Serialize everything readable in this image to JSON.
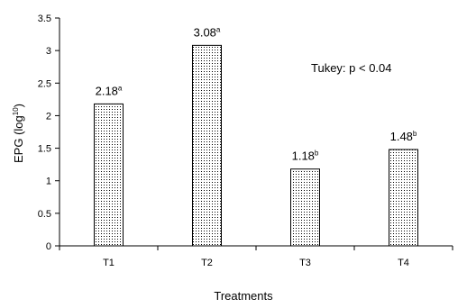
{
  "chart_data": {
    "type": "bar",
    "title": "",
    "xlabel": "Treatments",
    "ylabel_main": "EPG (log",
    "ylabel_sup": "10",
    "ylabel_end": ")",
    "categories": [
      "T1",
      "T2",
      "T3",
      "T4"
    ],
    "values": [
      2.18,
      3.08,
      1.18,
      1.48
    ],
    "value_labels": [
      "2.18",
      "3.08",
      "1.18",
      "1.48"
    ],
    "significance_letters": [
      "a",
      "a",
      "b",
      "b"
    ],
    "ylim": [
      0,
      3.5
    ],
    "yticks": [
      0,
      0.5,
      1,
      1.5,
      2,
      2.5,
      3,
      3.5
    ],
    "ytick_labels": [
      "0",
      "0.5",
      "1",
      "1.5",
      "2",
      "2.5",
      "3",
      "3.5"
    ],
    "grid": false,
    "annotation": "Tukey: p < 0.04",
    "bar_fill": "#ffffff",
    "bar_stipple": "#000000",
    "bar_stroke": "#000000"
  }
}
